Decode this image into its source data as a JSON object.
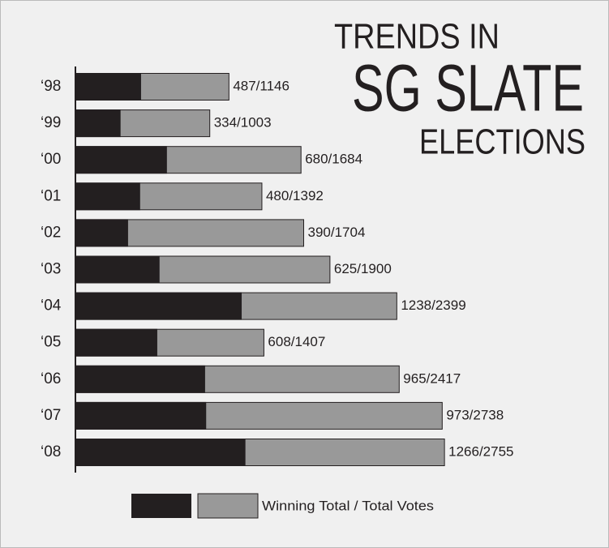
{
  "chart_data": {
    "type": "bar",
    "orientation": "horizontal",
    "title": [
      "TRENDS IN",
      "SG SLATE",
      "ELECTIONS"
    ],
    "categories": [
      "‘98",
      "‘99",
      "‘00",
      "‘01",
      "‘02",
      "‘03",
      "‘04",
      "‘05",
      "‘06",
      "‘07",
      "‘08"
    ],
    "series": [
      {
        "color": "#231f20",
        "values": [
          487,
          334,
          680,
          480,
          390,
          625,
          1238,
          608,
          965,
          973,
          1266
        ]
      },
      {
        "color": "#999999",
        "values": [
          1146,
          1003,
          1684,
          1392,
          1704,
          1900,
          2399,
          1407,
          2417,
          2738,
          2755
        ],
        "value_labels": [
          "487/1146",
          "334/1003",
          "680/1684",
          "480/1392",
          "390/1704",
          "625/1900",
          "1238/2399",
          "608/1407",
          "965/2417",
          "973/2738",
          "1266/2755"
        ]
      }
    ],
    "legend": "Winning Total / Total Votes",
    "xlim": [
      0,
      3000
    ]
  }
}
